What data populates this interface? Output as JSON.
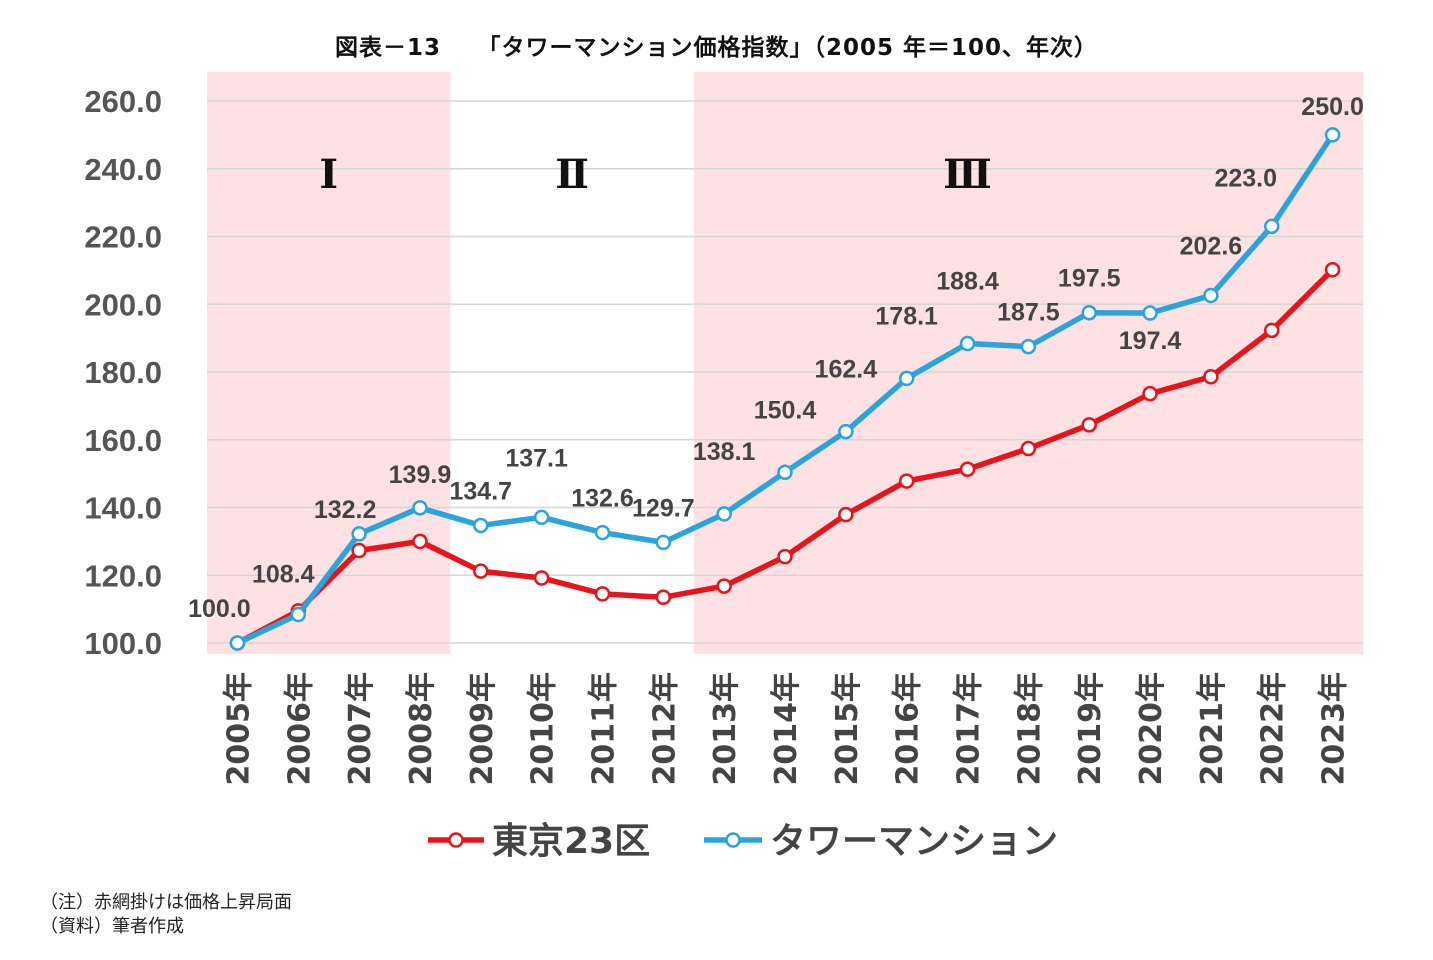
{
  "title": "図表－13　　「タワーマンション価格指数」（2005 年＝100、年次）",
  "chart_data": {
    "type": "line",
    "categories": [
      "2005年",
      "2006年",
      "2007年",
      "2008年",
      "2009年",
      "2010年",
      "2011年",
      "2012年",
      "2013年",
      "2014年",
      "2015年",
      "2016年",
      "2017年",
      "2018年",
      "2019年",
      "2020年",
      "2021年",
      "2022年",
      "2023年"
    ],
    "ylim": [
      100,
      260
    ],
    "yticks": [
      "100.0",
      "120.0",
      "140.0",
      "160.0",
      "180.0",
      "200.0",
      "220.0",
      "240.0",
      "260.0"
    ],
    "ytick_values": [
      100,
      120,
      140,
      160,
      180,
      200,
      220,
      240,
      260
    ],
    "grid": true,
    "legend_position": "bottom",
    "series": [
      {
        "name": "東京23区",
        "color": "#e8141c",
        "values": [
          100.0,
          109.5,
          127.3,
          130.0,
          121.2,
          119.2,
          114.5,
          113.5,
          116.8,
          125.5,
          137.9,
          147.8,
          151.3,
          157.4,
          164.4,
          173.6,
          178.6,
          192.3,
          210.2
        ],
        "labels": []
      },
      {
        "name": "タワーマンション",
        "color": "#2ba3dc",
        "values": [
          100.0,
          108.4,
          132.2,
          139.9,
          134.7,
          137.1,
          132.6,
          129.7,
          138.1,
          150.4,
          162.4,
          178.1,
          188.4,
          187.5,
          197.5,
          197.4,
          202.6,
          223.0,
          250.0
        ],
        "labels": [
          "100.0",
          "108.4",
          "132.2",
          "139.9",
          "134.7",
          "137.1",
          "132.6",
          "129.7",
          "138.1",
          "150.4",
          "162.4",
          "178.1",
          "188.4",
          "187.5",
          "197.5",
          "197.4",
          "202.6",
          "223.0",
          "250.0"
        ]
      }
    ],
    "phases": [
      {
        "label": "Ⅰ",
        "start": "2005年",
        "end": "2008年",
        "shaded": true
      },
      {
        "label": "Ⅱ",
        "start": "2009年",
        "end": "2012年",
        "shaded": false
      },
      {
        "label": "Ⅲ",
        "start": "2013年",
        "end": "2023年",
        "shaded": true
      }
    ],
    "shade_color": "#fde1e3"
  },
  "notes": {
    "note1": "（注）赤網掛けは価格上昇局面",
    "note2": "（資料）筆者作成"
  }
}
